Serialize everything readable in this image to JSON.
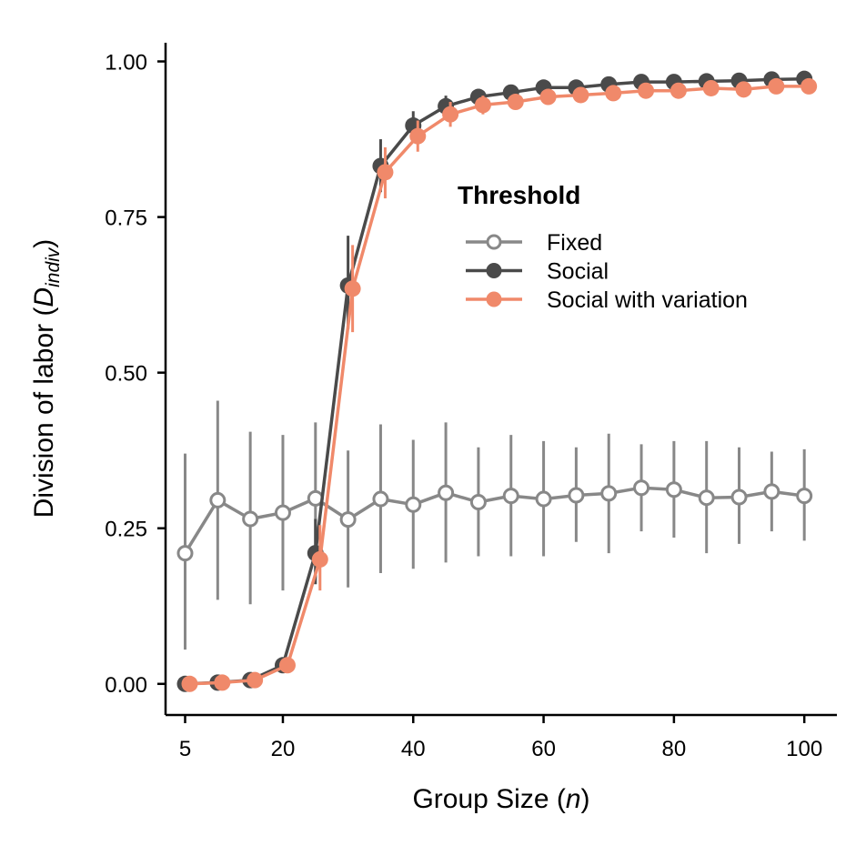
{
  "chart_data": {
    "type": "line",
    "xlabel": "Group Size",
    "xlabel_var": "n",
    "ylabel": "Division of labor",
    "ylabel_var": "D",
    "ylabel_sub": "indiv",
    "xlim": [
      2,
      105
    ],
    "ylim": [
      -0.05,
      1.03
    ],
    "x_ticks": [
      5,
      20,
      40,
      60,
      80,
      100
    ],
    "x_tick_labels": [
      "5",
      "20",
      "40",
      "60",
      "80",
      "100"
    ],
    "y_ticks": [
      0.0,
      0.25,
      0.5,
      0.75,
      1.0
    ],
    "y_tick_labels": [
      "0.00",
      "0.25",
      "0.50",
      "0.75",
      "1.00"
    ],
    "grid": false,
    "legend": {
      "title": "Threshold",
      "placement": "center-right",
      "entries": [
        "Fixed",
        "Social",
        "Social with variation"
      ]
    },
    "series": [
      {
        "name": "Fixed",
        "color": "#888888",
        "marker": "open-circle",
        "x": [
          5,
          10,
          15,
          20,
          25,
          30,
          35,
          40,
          45,
          50,
          55,
          60,
          65,
          70,
          75,
          80,
          85,
          90,
          95,
          100
        ],
        "y": [
          0.21,
          0.295,
          0.265,
          0.275,
          0.298,
          0.264,
          0.297,
          0.288,
          0.307,
          0.292,
          0.302,
          0.297,
          0.303,
          0.306,
          0.315,
          0.312,
          0.299,
          0.3,
          0.309,
          0.302
        ],
        "err_low": [
          0.055,
          0.135,
          0.128,
          0.15,
          0.17,
          0.155,
          0.178,
          0.185,
          0.195,
          0.205,
          0.205,
          0.205,
          0.228,
          0.21,
          0.245,
          0.235,
          0.21,
          0.225,
          0.245,
          0.23
        ],
        "err_high": [
          0.37,
          0.455,
          0.405,
          0.4,
          0.42,
          0.375,
          0.417,
          0.392,
          0.42,
          0.38,
          0.4,
          0.39,
          0.38,
          0.402,
          0.385,
          0.39,
          0.39,
          0.38,
          0.373,
          0.377
        ]
      },
      {
        "name": "Social",
        "color": "#4a4a4a",
        "marker": "filled-circle",
        "x": [
          5,
          10,
          15,
          20,
          25,
          30,
          35,
          40,
          45,
          50,
          55,
          60,
          65,
          70,
          75,
          80,
          85,
          90,
          95,
          100
        ],
        "y": [
          0.0,
          0.002,
          0.006,
          0.03,
          0.21,
          0.64,
          0.832,
          0.897,
          0.928,
          0.943,
          0.95,
          0.958,
          0.958,
          0.963,
          0.967,
          0.967,
          0.968,
          0.969,
          0.971,
          0.972
        ],
        "err_low": [
          0.0,
          0.0,
          0.0,
          0.02,
          0.16,
          0.57,
          0.79,
          0.875,
          0.91,
          0.93,
          0.94,
          0.95,
          0.95,
          0.955,
          0.96,
          0.96,
          0.962,
          0.963,
          0.966,
          0.967
        ],
        "err_high": [
          0.0,
          0.005,
          0.012,
          0.04,
          0.265,
          0.72,
          0.875,
          0.92,
          0.945,
          0.955,
          0.96,
          0.966,
          0.966,
          0.97,
          0.974,
          0.974,
          0.975,
          0.975,
          0.977,
          0.977
        ]
      },
      {
        "name": "Social with variation",
        "color": "#f0896a",
        "marker": "filled-circle",
        "x": [
          5,
          10,
          15,
          20,
          25,
          30,
          35,
          40,
          45,
          50,
          55,
          60,
          65,
          70,
          75,
          80,
          85,
          90,
          95,
          100
        ],
        "y": [
          0.0,
          0.002,
          0.006,
          0.03,
          0.2,
          0.635,
          0.822,
          0.88,
          0.915,
          0.93,
          0.935,
          0.943,
          0.946,
          0.949,
          0.953,
          0.953,
          0.957,
          0.955,
          0.96,
          0.96
        ],
        "err_low": [
          0.0,
          0.0,
          0.0,
          0.02,
          0.15,
          0.565,
          0.78,
          0.855,
          0.895,
          0.915,
          0.925,
          0.934,
          0.938,
          0.941,
          0.946,
          0.946,
          0.95,
          0.948,
          0.954,
          0.954
        ],
        "err_high": [
          0.0,
          0.005,
          0.012,
          0.04,
          0.255,
          0.705,
          0.862,
          0.905,
          0.935,
          0.945,
          0.946,
          0.952,
          0.954,
          0.957,
          0.96,
          0.96,
          0.964,
          0.962,
          0.966,
          0.966
        ]
      }
    ]
  }
}
